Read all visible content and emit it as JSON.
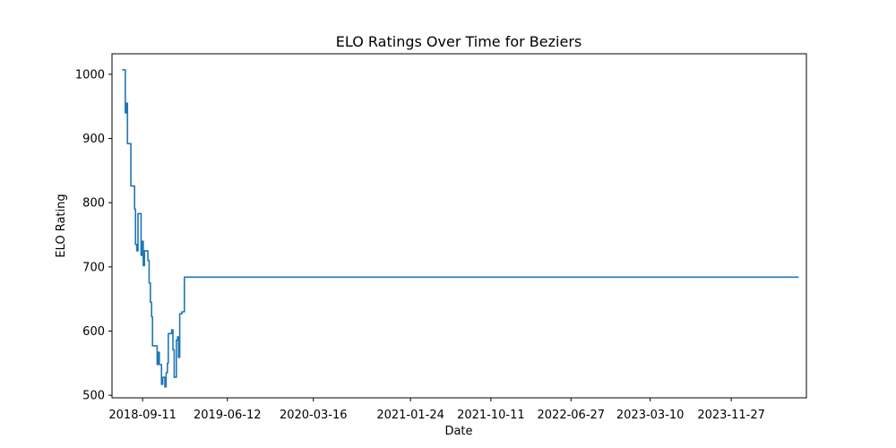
{
  "chart_data": {
    "type": "line",
    "title": "ELO Ratings Over Time for Beziers",
    "xlabel": "Date",
    "ylabel": "ELO Rating",
    "x_tick_labels": [
      "2018-09-11",
      "2019-06-12",
      "2020-03-16",
      "2021-01-24",
      "2021-10-11",
      "2022-06-27",
      "2023-03-10",
      "2023-11-27"
    ],
    "y_ticks": [
      500,
      600,
      700,
      800,
      900,
      1000
    ],
    "xlim": [
      "2018-06-04",
      "2024-07-27"
    ],
    "ylim": [
      496,
      1032
    ],
    "grid": false,
    "series": [
      {
        "color": "#1f77b4",
        "points": [
          [
            "2018-07-07",
            1007
          ],
          [
            "2018-07-17",
            1007
          ],
          [
            "2018-07-17",
            940
          ],
          [
            "2018-07-20",
            940
          ],
          [
            "2018-07-20",
            955
          ],
          [
            "2018-07-24",
            955
          ],
          [
            "2018-07-24",
            892
          ],
          [
            "2018-08-04",
            892
          ],
          [
            "2018-08-04",
            826
          ],
          [
            "2018-08-16",
            826
          ],
          [
            "2018-08-16",
            790
          ],
          [
            "2018-08-19",
            790
          ],
          [
            "2018-08-19",
            735
          ],
          [
            "2018-08-23",
            735
          ],
          [
            "2018-08-23",
            725
          ],
          [
            "2018-08-27",
            725
          ],
          [
            "2018-08-27",
            783
          ],
          [
            "2018-09-06",
            783
          ],
          [
            "2018-09-06",
            718
          ],
          [
            "2018-09-09",
            718
          ],
          [
            "2018-09-09",
            740
          ],
          [
            "2018-09-13",
            740
          ],
          [
            "2018-09-13",
            702
          ],
          [
            "2018-09-17",
            702
          ],
          [
            "2018-09-17",
            725
          ],
          [
            "2018-09-28",
            725
          ],
          [
            "2018-09-28",
            710
          ],
          [
            "2018-10-02",
            710
          ],
          [
            "2018-10-02",
            675
          ],
          [
            "2018-10-06",
            675
          ],
          [
            "2018-10-06",
            645
          ],
          [
            "2018-10-10",
            645
          ],
          [
            "2018-10-10",
            622
          ],
          [
            "2018-10-13",
            622
          ],
          [
            "2018-10-13",
            577
          ],
          [
            "2018-10-28",
            577
          ],
          [
            "2018-10-28",
            548
          ],
          [
            "2018-10-31",
            548
          ],
          [
            "2018-10-31",
            567
          ],
          [
            "2018-11-04",
            567
          ],
          [
            "2018-11-04",
            548
          ],
          [
            "2018-11-11",
            548
          ],
          [
            "2018-11-11",
            517
          ],
          [
            "2018-11-15",
            517
          ],
          [
            "2018-11-15",
            528
          ],
          [
            "2018-11-22",
            528
          ],
          [
            "2018-11-22",
            513
          ],
          [
            "2018-11-26",
            513
          ],
          [
            "2018-11-26",
            535
          ],
          [
            "2018-11-30",
            535
          ],
          [
            "2018-11-30",
            550
          ],
          [
            "2018-12-03",
            550
          ],
          [
            "2018-12-03",
            596
          ],
          [
            "2018-12-14",
            596
          ],
          [
            "2018-12-14",
            602
          ],
          [
            "2018-12-18",
            602
          ],
          [
            "2018-12-18",
            571
          ],
          [
            "2018-12-22",
            571
          ],
          [
            "2018-12-22",
            528
          ],
          [
            "2018-12-29",
            528
          ],
          [
            "2018-12-29",
            586
          ],
          [
            "2019-01-02",
            586
          ],
          [
            "2019-01-02",
            591
          ],
          [
            "2019-01-05",
            591
          ],
          [
            "2019-01-05",
            559
          ],
          [
            "2019-01-09",
            559
          ],
          [
            "2019-01-09",
            627
          ],
          [
            "2019-01-16",
            627
          ],
          [
            "2019-01-16",
            630
          ],
          [
            "2019-01-24",
            630
          ],
          [
            "2019-01-24",
            684
          ],
          [
            "2024-07-02",
            684
          ]
        ]
      }
    ]
  }
}
